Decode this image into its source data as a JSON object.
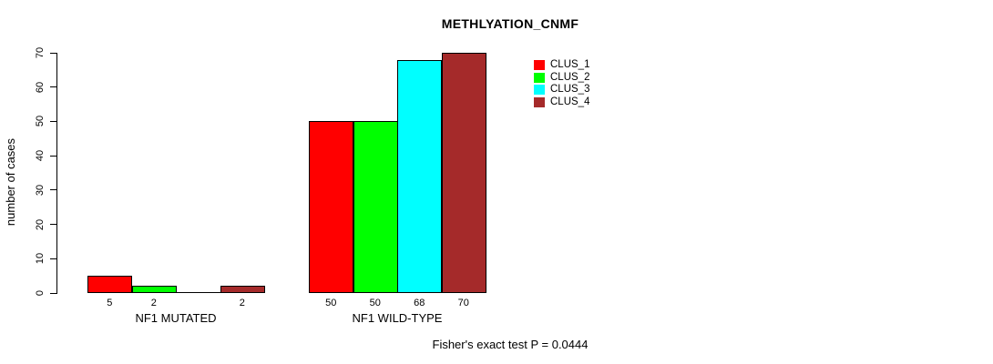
{
  "chart_data": {
    "type": "bar",
    "title": "METHLYATION_CNMF",
    "xlabel": "",
    "ylabel": "number of cases",
    "ylim": [
      0,
      70
    ],
    "yticks": [
      0,
      10,
      20,
      30,
      40,
      50,
      60,
      70
    ],
    "grid": false,
    "categories": [
      "NF1 MUTATED",
      "NF1 WILD-TYPE"
    ],
    "series": [
      {
        "name": "CLUS_1",
        "color": "#FF0000",
        "values": [
          5,
          50
        ]
      },
      {
        "name": "CLUS_2",
        "color": "#00FF00",
        "values": [
          2,
          50
        ]
      },
      {
        "name": "CLUS_3",
        "color": "#00FFFF",
        "values": [
          0,
          68
        ]
      },
      {
        "name": "CLUS_4",
        "color": "#A52A2A",
        "values": [
          2,
          70
        ]
      }
    ],
    "bar_value_labels": [
      [
        "5",
        "2",
        "",
        "2"
      ],
      [
        "50",
        "50",
        "68",
        "70"
      ]
    ],
    "legend": {
      "position": "top-right",
      "entries": [
        "CLUS_1",
        "CLUS_2",
        "CLUS_3",
        "CLUS_4"
      ]
    },
    "annotation": "Fisher's exact test P = 0.0444",
    "axis_color": "#000000",
    "bar_border_color": "#000000"
  }
}
